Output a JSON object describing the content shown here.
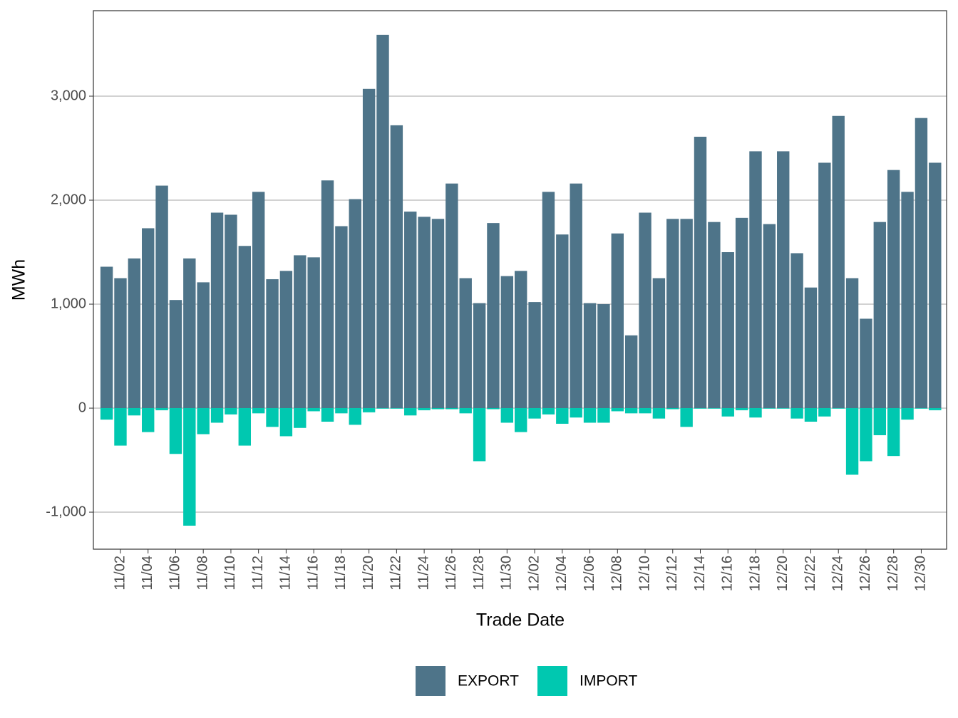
{
  "chart_data": {
    "type": "bar",
    "x_label": "Trade Date",
    "y_label": "MWh",
    "categories": [
      null,
      "11/02",
      null,
      "11/04",
      null,
      "11/06",
      null,
      "11/08",
      null,
      "11/10",
      null,
      "11/12",
      null,
      "11/14",
      null,
      "11/16",
      null,
      "11/18",
      null,
      "11/20",
      null,
      "11/22",
      null,
      "11/24",
      null,
      "11/26",
      null,
      "11/28",
      null,
      "11/30",
      null,
      "12/02",
      null,
      "12/04",
      null,
      "12/06",
      null,
      "12/08",
      null,
      "12/10",
      null,
      "12/12",
      null,
      "12/14",
      null,
      "12/16",
      null,
      "12/18",
      null,
      "12/20",
      null,
      "12/22",
      null,
      "12/24",
      null,
      "12/26",
      null,
      "12/28",
      null,
      "12/30",
      null
    ],
    "series": [
      {
        "name": "EXPORT",
        "color": "#4e7489",
        "values": [
          1360,
          1250,
          1440,
          1730,
          2140,
          1040,
          1440,
          1210,
          1880,
          1860,
          1560,
          2080,
          1240,
          1320,
          1470,
          1450,
          2190,
          1750,
          2010,
          3070,
          3590,
          2720,
          1890,
          1840,
          1820,
          2160,
          1250,
          1010,
          1780,
          1270,
          1320,
          1020,
          2080,
          1670,
          2160,
          1010,
          1000,
          1680,
          700,
          1880,
          1250,
          1820,
          1820,
          2610,
          1790,
          1500,
          1830,
          2470,
          1770,
          2470,
          1490,
          1160,
          2360,
          2810,
          1250,
          860,
          1790,
          2290,
          2080,
          2790,
          2360
        ]
      },
      {
        "name": "IMPORT",
        "color": "#00c8b0",
        "values": [
          -110,
          -360,
          -70,
          -230,
          -20,
          -440,
          -1130,
          -250,
          -140,
          -60,
          -360,
          -50,
          -180,
          -270,
          -190,
          -30,
          -130,
          -50,
          -160,
          -40,
          -5,
          -5,
          -70,
          -20,
          -10,
          -10,
          -50,
          -510,
          -10,
          -140,
          -230,
          -100,
          -60,
          -150,
          -90,
          -140,
          -140,
          -30,
          -50,
          -50,
          -100,
          -10,
          -180,
          -5,
          -5,
          -80,
          -20,
          -90,
          -5,
          -5,
          -100,
          -130,
          -80,
          -5,
          -640,
          -510,
          -260,
          -460,
          -110,
          -5,
          -20
        ]
      }
    ],
    "ylim": [
      -1356,
      3822
    ],
    "yticks": [
      {
        "value": -1000,
        "label": "-1,000"
      },
      0,
      {
        "value": 1000,
        "label": "1,000"
      },
      {
        "value": 2000,
        "label": "2,000"
      },
      {
        "value": 3000,
        "label": "3,000"
      }
    ],
    "grid": true,
    "legend": "bottom"
  }
}
